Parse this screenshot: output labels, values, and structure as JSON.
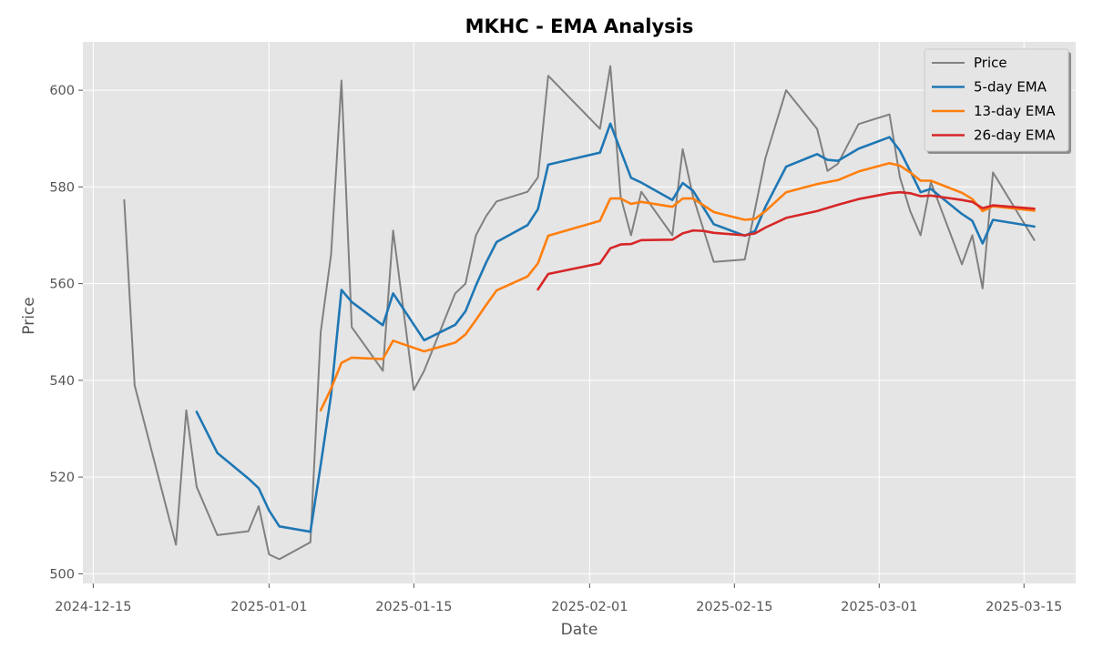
{
  "chart_data": {
    "type": "line",
    "title": "MKHC - EMA Analysis",
    "xlabel": "Date",
    "ylabel": "Price",
    "x_type": "date",
    "xlim": [
      "2024-12-14",
      "2025-03-20"
    ],
    "ylim": [
      498,
      610
    ],
    "x_ticks": [
      "2024-12-15",
      "2025-01-01",
      "2025-01-15",
      "2025-02-01",
      "2025-02-15",
      "2025-03-01",
      "2025-03-15"
    ],
    "y_ticks": [
      500,
      520,
      540,
      560,
      580,
      600
    ],
    "grid": true,
    "legend_position": "top-right",
    "colors": {
      "plot_background": "#e5e5e5",
      "grid": "#ffffff",
      "text": "#555555"
    },
    "series": [
      {
        "name": "Price",
        "color": "#808080",
        "points": [
          [
            "2024-12-18",
            577.3
          ],
          [
            "2024-12-19",
            539.0
          ],
          [
            "2024-12-23",
            506.0
          ],
          [
            "2024-12-24",
            533.8
          ],
          [
            "2024-12-25",
            518.0
          ],
          [
            "2024-12-27",
            508.0
          ],
          [
            "2024-12-30",
            508.8
          ],
          [
            "2024-12-31",
            514.0
          ],
          [
            "2025-01-01",
            504.0
          ],
          [
            "2025-01-02",
            503.0
          ],
          [
            "2025-01-05",
            506.5
          ],
          [
            "2025-01-06",
            550.0
          ],
          [
            "2025-01-07",
            566.0
          ],
          [
            "2025-01-08",
            602.0
          ],
          [
            "2025-01-09",
            551.0
          ],
          [
            "2025-01-12",
            542.0
          ],
          [
            "2025-01-13",
            571.0
          ],
          [
            "2025-01-15",
            538.0
          ],
          [
            "2025-01-16",
            542.0
          ],
          [
            "2025-01-19",
            558.0
          ],
          [
            "2025-01-20",
            560.0
          ],
          [
            "2025-01-21",
            570.0
          ],
          [
            "2025-01-22",
            574.0
          ],
          [
            "2025-01-23",
            577.0
          ],
          [
            "2025-01-26",
            579.0
          ],
          [
            "2025-01-27",
            582.0
          ],
          [
            "2025-01-28",
            603.0
          ],
          [
            "2025-02-02",
            592.0
          ],
          [
            "2025-02-03",
            605.0
          ],
          [
            "2025-02-04",
            578.0
          ],
          [
            "2025-02-05",
            570.0
          ],
          [
            "2025-02-06",
            579.0
          ],
          [
            "2025-02-09",
            570.0
          ],
          [
            "2025-02-10",
            587.8
          ],
          [
            "2025-02-11",
            578.0
          ],
          [
            "2025-02-13",
            564.5
          ],
          [
            "2025-02-16",
            565.0
          ],
          [
            "2025-02-18",
            586.0
          ],
          [
            "2025-02-20",
            600.0
          ],
          [
            "2025-02-23",
            592.0
          ],
          [
            "2025-02-24",
            583.3
          ],
          [
            "2025-02-25",
            584.8
          ],
          [
            "2025-02-27",
            593.0
          ],
          [
            "2025-03-02",
            595.0
          ],
          [
            "2025-03-03",
            582.0
          ],
          [
            "2025-03-04",
            575.0
          ],
          [
            "2025-03-05",
            570.0
          ],
          [
            "2025-03-06",
            581.0
          ],
          [
            "2025-03-09",
            564.0
          ],
          [
            "2025-03-10",
            570.0
          ],
          [
            "2025-03-11",
            559.0
          ],
          [
            "2025-03-12",
            583.0
          ],
          [
            "2025-03-16",
            569.0
          ]
        ]
      },
      {
        "name": "5-day EMA",
        "color": "#1f77b4",
        "points": [
          [
            "2024-12-25",
            533.5
          ],
          [
            "2024-12-27",
            525.0
          ],
          [
            "2024-12-30",
            519.7
          ],
          [
            "2024-12-31",
            517.7
          ],
          [
            "2025-01-01",
            513.1
          ],
          [
            "2025-01-02",
            509.8
          ],
          [
            "2025-01-05",
            508.7
          ],
          [
            "2025-01-06",
            522.5
          ],
          [
            "2025-01-07",
            537.0
          ],
          [
            "2025-01-08",
            558.7
          ],
          [
            "2025-01-09",
            556.2
          ],
          [
            "2025-01-12",
            551.4
          ],
          [
            "2025-01-13",
            558.0
          ],
          [
            "2025-01-16",
            548.3
          ],
          [
            "2025-01-19",
            551.5
          ],
          [
            "2025-01-20",
            554.3
          ],
          [
            "2025-01-21",
            559.6
          ],
          [
            "2025-01-22",
            564.4
          ],
          [
            "2025-01-23",
            568.6
          ],
          [
            "2025-01-26",
            572.1
          ],
          [
            "2025-01-27",
            575.4
          ],
          [
            "2025-01-28",
            584.6
          ],
          [
            "2025-02-02",
            587.1
          ],
          [
            "2025-02-03",
            593.1
          ],
          [
            "2025-02-05",
            581.9
          ],
          [
            "2025-02-06",
            580.9
          ],
          [
            "2025-02-09",
            577.3
          ],
          [
            "2025-02-10",
            580.8
          ],
          [
            "2025-02-11",
            579.2
          ],
          [
            "2025-02-13",
            572.3
          ],
          [
            "2025-02-16",
            569.9
          ],
          [
            "2025-02-17",
            570.9
          ],
          [
            "2025-02-18",
            575.9
          ],
          [
            "2025-02-20",
            584.2
          ],
          [
            "2025-02-23",
            586.8
          ],
          [
            "2025-02-24",
            585.6
          ],
          [
            "2025-02-25",
            585.4
          ],
          [
            "2025-02-27",
            587.9
          ],
          [
            "2025-03-02",
            590.3
          ],
          [
            "2025-03-03",
            587.5
          ],
          [
            "2025-03-04",
            583.3
          ],
          [
            "2025-03-05",
            578.9
          ],
          [
            "2025-03-06",
            579.6
          ],
          [
            "2025-03-09",
            574.4
          ],
          [
            "2025-03-10",
            573.0
          ],
          [
            "2025-03-11",
            568.3
          ],
          [
            "2025-03-12",
            573.2
          ],
          [
            "2025-03-16",
            571.8
          ]
        ]
      },
      {
        "name": "13-day EMA",
        "color": "#ff7f0e",
        "points": [
          [
            "2025-01-06",
            533.8
          ],
          [
            "2025-01-07",
            538.3
          ],
          [
            "2025-01-08",
            543.6
          ],
          [
            "2025-01-09",
            544.7
          ],
          [
            "2025-01-12",
            544.4
          ],
          [
            "2025-01-13",
            548.2
          ],
          [
            "2025-01-16",
            546.0
          ],
          [
            "2025-01-19",
            547.8
          ],
          [
            "2025-01-20",
            549.5
          ],
          [
            "2025-01-21",
            552.5
          ],
          [
            "2025-01-22",
            555.6
          ],
          [
            "2025-01-23",
            558.6
          ],
          [
            "2025-01-26",
            561.5
          ],
          [
            "2025-01-27",
            564.2
          ],
          [
            "2025-01-28",
            569.9
          ],
          [
            "2025-02-02",
            573.0
          ],
          [
            "2025-02-03",
            577.6
          ],
          [
            "2025-02-04",
            577.6
          ],
          [
            "2025-02-05",
            576.5
          ],
          [
            "2025-02-06",
            576.9
          ],
          [
            "2025-02-09",
            575.9
          ],
          [
            "2025-02-10",
            577.6
          ],
          [
            "2025-02-11",
            577.6
          ],
          [
            "2025-02-13",
            574.8
          ],
          [
            "2025-02-16",
            573.2
          ],
          [
            "2025-02-17",
            573.4
          ],
          [
            "2025-02-18",
            575.0
          ],
          [
            "2025-02-20",
            578.9
          ],
          [
            "2025-02-23",
            580.6
          ],
          [
            "2025-02-25",
            581.4
          ],
          [
            "2025-02-27",
            583.2
          ],
          [
            "2025-03-02",
            584.9
          ],
          [
            "2025-03-03",
            584.4
          ],
          [
            "2025-03-04",
            583.0
          ],
          [
            "2025-03-05",
            581.3
          ],
          [
            "2025-03-06",
            581.3
          ],
          [
            "2025-03-09",
            578.8
          ],
          [
            "2025-03-10",
            577.5
          ],
          [
            "2025-03-11",
            575.0
          ],
          [
            "2025-03-12",
            576.0
          ],
          [
            "2025-03-16",
            575.1
          ]
        ]
      },
      {
        "name": "26-day EMA",
        "color": "#d62728",
        "points": [
          [
            "2025-01-27",
            558.8
          ],
          [
            "2025-01-28",
            562.0
          ],
          [
            "2025-02-02",
            564.2
          ],
          [
            "2025-02-03",
            567.3
          ],
          [
            "2025-02-04",
            568.1
          ],
          [
            "2025-02-05",
            568.2
          ],
          [
            "2025-02-06",
            569.0
          ],
          [
            "2025-02-09",
            569.1
          ],
          [
            "2025-02-10",
            570.4
          ],
          [
            "2025-02-11",
            571.0
          ],
          [
            "2025-02-12",
            570.9
          ],
          [
            "2025-02-13",
            570.5
          ],
          [
            "2025-02-16",
            570.0
          ],
          [
            "2025-02-17",
            570.4
          ],
          [
            "2025-02-18",
            571.6
          ],
          [
            "2025-02-20",
            573.6
          ],
          [
            "2025-02-23",
            575.0
          ],
          [
            "2025-02-25",
            576.3
          ],
          [
            "2025-02-27",
            577.5
          ],
          [
            "2025-03-02",
            578.7
          ],
          [
            "2025-03-03",
            578.9
          ],
          [
            "2025-03-04",
            578.7
          ],
          [
            "2025-03-05",
            578.1
          ],
          [
            "2025-03-06",
            578.2
          ],
          [
            "2025-03-09",
            577.3
          ],
          [
            "2025-03-10",
            576.9
          ],
          [
            "2025-03-11",
            575.6
          ],
          [
            "2025-03-12",
            576.2
          ],
          [
            "2025-03-16",
            575.5
          ]
        ]
      }
    ]
  }
}
